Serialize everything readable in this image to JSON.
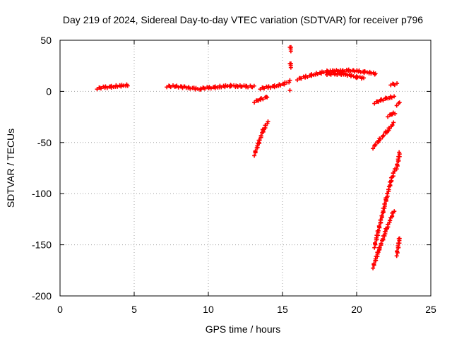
{
  "chart_data": {
    "type": "scatter",
    "title": "Day 219 of 2024, Sidereal Day-to-day VTEC variation (SDTVAR) for receiver p796",
    "xlabel": "GPS time / hours",
    "ylabel": "SDTVAR / TECUs",
    "xlim": [
      0,
      25
    ],
    "ylim": [
      -200,
      50
    ],
    "xticks": [
      0,
      5,
      10,
      15,
      20,
      25
    ],
    "yticks": [
      -200,
      -150,
      -100,
      -50,
      0,
      50
    ],
    "grid": true,
    "marker": "plus",
    "color": "#ff0000",
    "segments": [
      {
        "x": [
          2.5,
          3.0,
          3.5,
          4.0,
          4.6
        ],
        "y": [
          3,
          4,
          4.5,
          5.5,
          6
        ]
      },
      {
        "x": [
          7.2,
          7.8,
          8.4,
          9.0,
          9.5
        ],
        "y": [
          5,
          5,
          4,
          3,
          2
        ]
      },
      {
        "x": [
          9.5,
          10.0,
          10.5,
          11.0,
          11.5,
          12.0,
          12.5,
          13.1
        ],
        "y": [
          3,
          3.5,
          4,
          5,
          5.5,
          5,
          5,
          4.5
        ]
      },
      {
        "x": [
          13.5,
          14.0,
          14.5,
          15.0,
          15.5
        ],
        "y": [
          3,
          4,
          5,
          7,
          10
        ]
      },
      {
        "x": [
          13.1,
          13.5,
          14.0
        ],
        "y": [
          -10,
          -8,
          -5
        ]
      },
      {
        "x": [
          13.1,
          13.4,
          13.7,
          14.0
        ],
        "y": [
          -62,
          -50,
          -38,
          -30
        ]
      },
      {
        "x": [
          15.5,
          15.6
        ],
        "y": [
          44,
          40
        ]
      },
      {
        "x": [
          15.5,
          15.6
        ],
        "y": [
          28,
          24
        ]
      },
      {
        "x": [
          15.5
        ],
        "y": [
          1
        ]
      },
      {
        "x": [
          16.0,
          16.5,
          17.0,
          17.5,
          18.0,
          18.5,
          19.0,
          19.5,
          20.0,
          20.5,
          21.0,
          21.3
        ],
        "y": [
          12,
          14,
          16,
          18,
          19.5,
          20,
          20,
          20.5,
          20,
          19,
          18,
          17
        ]
      },
      {
        "x": [
          18.0,
          18.5,
          19.0,
          19.5,
          20.0,
          20.5
        ],
        "y": [
          17,
          17,
          17,
          16,
          14,
          13
        ]
      },
      {
        "x": [
          21.2,
          21.6,
          22.0,
          22.5
        ],
        "y": [
          -11,
          -9,
          -7,
          -5
        ]
      },
      {
        "x": [
          22.3,
          22.7
        ],
        "y": [
          7,
          7
        ]
      },
      {
        "x": [
          22.1,
          22.4,
          22.6
        ],
        "y": [
          -24,
          -22,
          -21
        ]
      },
      {
        "x": [
          22.7,
          22.9
        ],
        "y": [
          -13,
          -11
        ]
      },
      {
        "x": [
          21.1,
          21.5,
          22.0,
          22.5
        ],
        "y": [
          -55,
          -48,
          -40,
          -31
        ]
      },
      {
        "x": [
          21.2,
          21.6,
          22.0,
          22.3,
          22.6
        ],
        "y": [
          -152,
          -128,
          -105,
          -88,
          -75
        ]
      },
      {
        "x": [
          21.1,
          21.5,
          22.0,
          22.5
        ],
        "y": [
          -172,
          -155,
          -135,
          -117
        ]
      },
      {
        "x": [
          22.7,
          22.9
        ],
        "y": [
          -75,
          -60
        ]
      },
      {
        "x": [
          22.7,
          22.9
        ],
        "y": [
          -160,
          -143
        ]
      }
    ]
  }
}
